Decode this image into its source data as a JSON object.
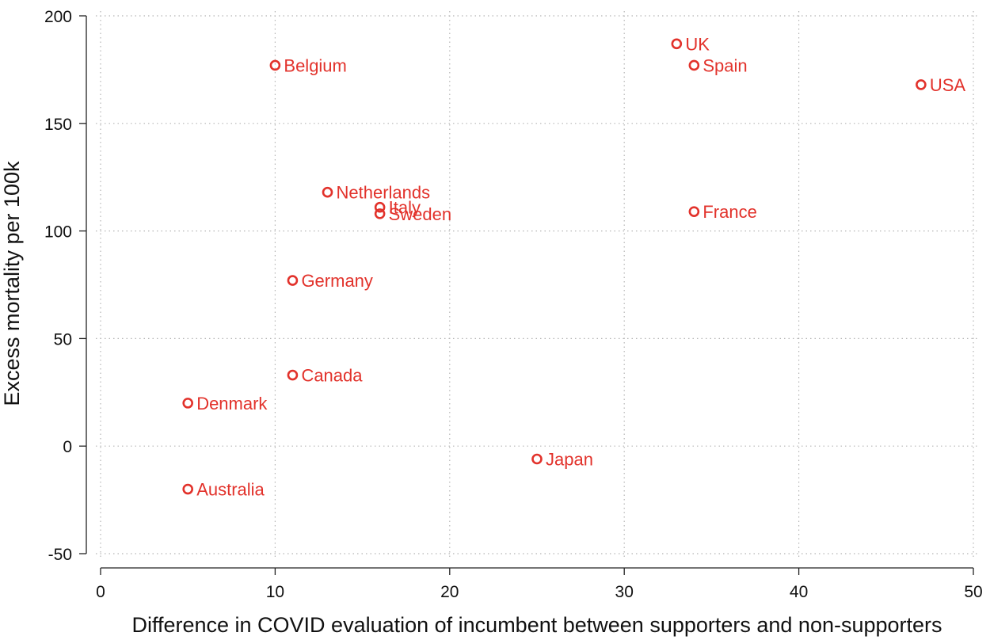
{
  "chart_data": {
    "type": "scatter",
    "title": "",
    "xlabel": "Difference in COVID evaluation of incumbent between supporters and non-supporters",
    "ylabel": "Excess mortality per 100k",
    "xlim": [
      0,
      50
    ],
    "ylim": [
      -50,
      200
    ],
    "xticks": [
      0,
      10,
      20,
      30,
      40,
      50
    ],
    "yticks": [
      -50,
      0,
      50,
      100,
      150,
      200
    ],
    "grid": true,
    "marker_color": "#e2322b",
    "label_color": "#e2322b",
    "points": [
      {
        "label": "Belgium",
        "x": 10,
        "y": 177
      },
      {
        "label": "UK",
        "x": 33,
        "y": 187
      },
      {
        "label": "Spain",
        "x": 34,
        "y": 177
      },
      {
        "label": "USA",
        "x": 47,
        "y": 168
      },
      {
        "label": "Netherlands",
        "x": 13,
        "y": 118
      },
      {
        "label": "Italy",
        "x": 16,
        "y": 111
      },
      {
        "label": "Sweden",
        "x": 16,
        "y": 108
      },
      {
        "label": "France",
        "x": 34,
        "y": 109
      },
      {
        "label": "Germany",
        "x": 11,
        "y": 77
      },
      {
        "label": "Canada",
        "x": 11,
        "y": 33
      },
      {
        "label": "Denmark",
        "x": 5,
        "y": 20
      },
      {
        "label": "Japan",
        "x": 25,
        "y": -6
      },
      {
        "label": "Australia",
        "x": 5,
        "y": -20
      }
    ]
  }
}
